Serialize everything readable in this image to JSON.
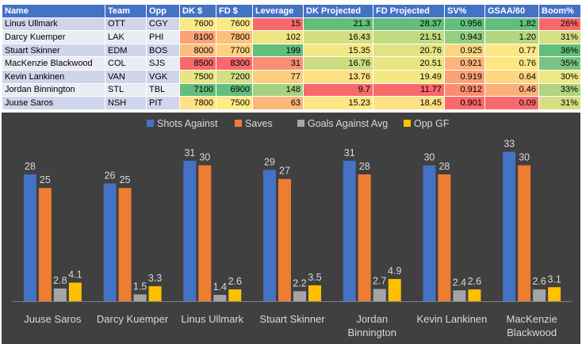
{
  "table": {
    "headers": [
      "Name",
      "Team",
      "Opp",
      "DK $",
      "FD $",
      "Leverage",
      "DK Projected",
      "FD Projected",
      "SV%",
      "GSAA/60",
      "Boom%"
    ],
    "rows": [
      [
        "Linus Ullmark",
        "OTT",
        "CGY",
        "7600",
        "7600",
        "15",
        "21.3",
        "28.37",
        "0.956",
        "1.82",
        "26%"
      ],
      [
        "Darcy Kuemper",
        "LAK",
        "PHI",
        "8100",
        "7800",
        "102",
        "16.43",
        "21.51",
        "0.943",
        "1.20",
        "31%"
      ],
      [
        "Stuart Skinner",
        "EDM",
        "BOS",
        "8000",
        "7700",
        "199",
        "15.35",
        "20.76",
        "0.925",
        "0.77",
        "36%"
      ],
      [
        "MacKenzie Blackwood",
        "COL",
        "SJS",
        "8500",
        "8300",
        "31",
        "16.76",
        "20.51",
        "0.921",
        "0.76",
        "35%"
      ],
      [
        "Kevin Lankinen",
        "VAN",
        "VGK",
        "7500",
        "7200",
        "77",
        "13.76",
        "19.49",
        "0.919",
        "0.64",
        "30%"
      ],
      [
        "Jordan Binnington",
        "STL",
        "TBL",
        "7100",
        "6900",
        "148",
        "9.7",
        "11.77",
        "0.912",
        "0.46",
        "33%"
      ],
      [
        "Juuse Saros",
        "NSH",
        "PIT",
        "7800",
        "7500",
        "63",
        "15.23",
        "18.45",
        "0.901",
        "0.09",
        "31%"
      ]
    ],
    "cell_colors": [
      [
        null,
        null,
        null,
        "#fde984",
        "#fde984",
        "#f8696b",
        "#63be7b",
        "#63be7b",
        "#63be7b",
        "#63be7b",
        "#f8696b"
      ],
      [
        null,
        null,
        null,
        "#fba276",
        "#fcc07c",
        "#eee583",
        "#d5df82",
        "#c2da80",
        "#95ce7f",
        "#b5d680",
        "#d6df81"
      ],
      [
        null,
        null,
        null,
        "#fcbf7b",
        "#fdd17f",
        "#63be7b",
        "#f4e884",
        "#e1e383",
        "#f7d880",
        "#fde783",
        "#63be7b"
      ],
      [
        null,
        null,
        null,
        "#f8696b",
        "#f8696b",
        "#fa8e72",
        "#cbdc81",
        "#e9e583",
        "#fcb57a",
        "#fee683",
        "#7ac380"
      ],
      [
        null,
        null,
        null,
        "#e8e583",
        "#d4df82",
        "#fdcd7e",
        "#fedf82",
        "#f3e884",
        "#fba276",
        "#fed680",
        "#efe784"
      ],
      [
        null,
        null,
        null,
        "#63be7b",
        "#63be7b",
        "#a6d27f",
        "#f8696b",
        "#f8696b",
        "#fa8c71",
        "#fbae78",
        "#b0d47f"
      ],
      [
        null,
        null,
        null,
        "#fee283",
        "#feec84",
        "#fcb87a",
        "#fee683",
        "#fde182",
        "#f8696b",
        "#f8696b",
        "#d6df81"
      ]
    ]
  },
  "chart_data": {
    "type": "bar",
    "legend_position": "top",
    "background": "#404040",
    "categories": [
      "Juuse Saros",
      "Darcy Kuemper",
      "Linus Ullmark",
      "Stuart Skinner",
      "Jordan Binnington",
      "Kevin Lankinen",
      "MacKenzie Blackwood"
    ],
    "category_lines": [
      [
        "Juuse Saros"
      ],
      [
        "Darcy Kuemper"
      ],
      [
        "Linus Ullmark"
      ],
      [
        "Stuart Skinner"
      ],
      [
        "Jordan",
        "Binnington"
      ],
      [
        "Kevin Lankinen"
      ],
      [
        "MacKenzie",
        "Blackwood"
      ]
    ],
    "series": [
      {
        "name": "Shots Against",
        "color": "#4472c4",
        "values": [
          28,
          26,
          31,
          29,
          31,
          30,
          33
        ],
        "labels": [
          "28",
          "26",
          "31",
          "29",
          "31",
          "30",
          "33"
        ]
      },
      {
        "name": "Saves",
        "color": "#ed7d31",
        "values": [
          25,
          25,
          30,
          27,
          28,
          28,
          30
        ],
        "labels": [
          "25",
          "25",
          "30",
          "27",
          "28",
          "28",
          "30"
        ]
      },
      {
        "name": "Goals Against Avg",
        "color": "#a5a5a5",
        "values": [
          2.8,
          1.5,
          1.4,
          2.2,
          2.7,
          2.4,
          2.6
        ],
        "labels": [
          "2.8",
          "1.5",
          "1.4",
          "2.2",
          "2.7",
          "2.4",
          "2.6"
        ]
      },
      {
        "name": "Opp GF",
        "color": "#ffc000",
        "values": [
          4.1,
          3.3,
          2.6,
          3.5,
          4.9,
          2.6,
          3.1
        ],
        "labels": [
          "4.1",
          "3.3",
          "2.6",
          "3.5",
          "4.9",
          "2.6",
          "3.1"
        ]
      }
    ],
    "ylim": [
      0,
      35
    ]
  }
}
